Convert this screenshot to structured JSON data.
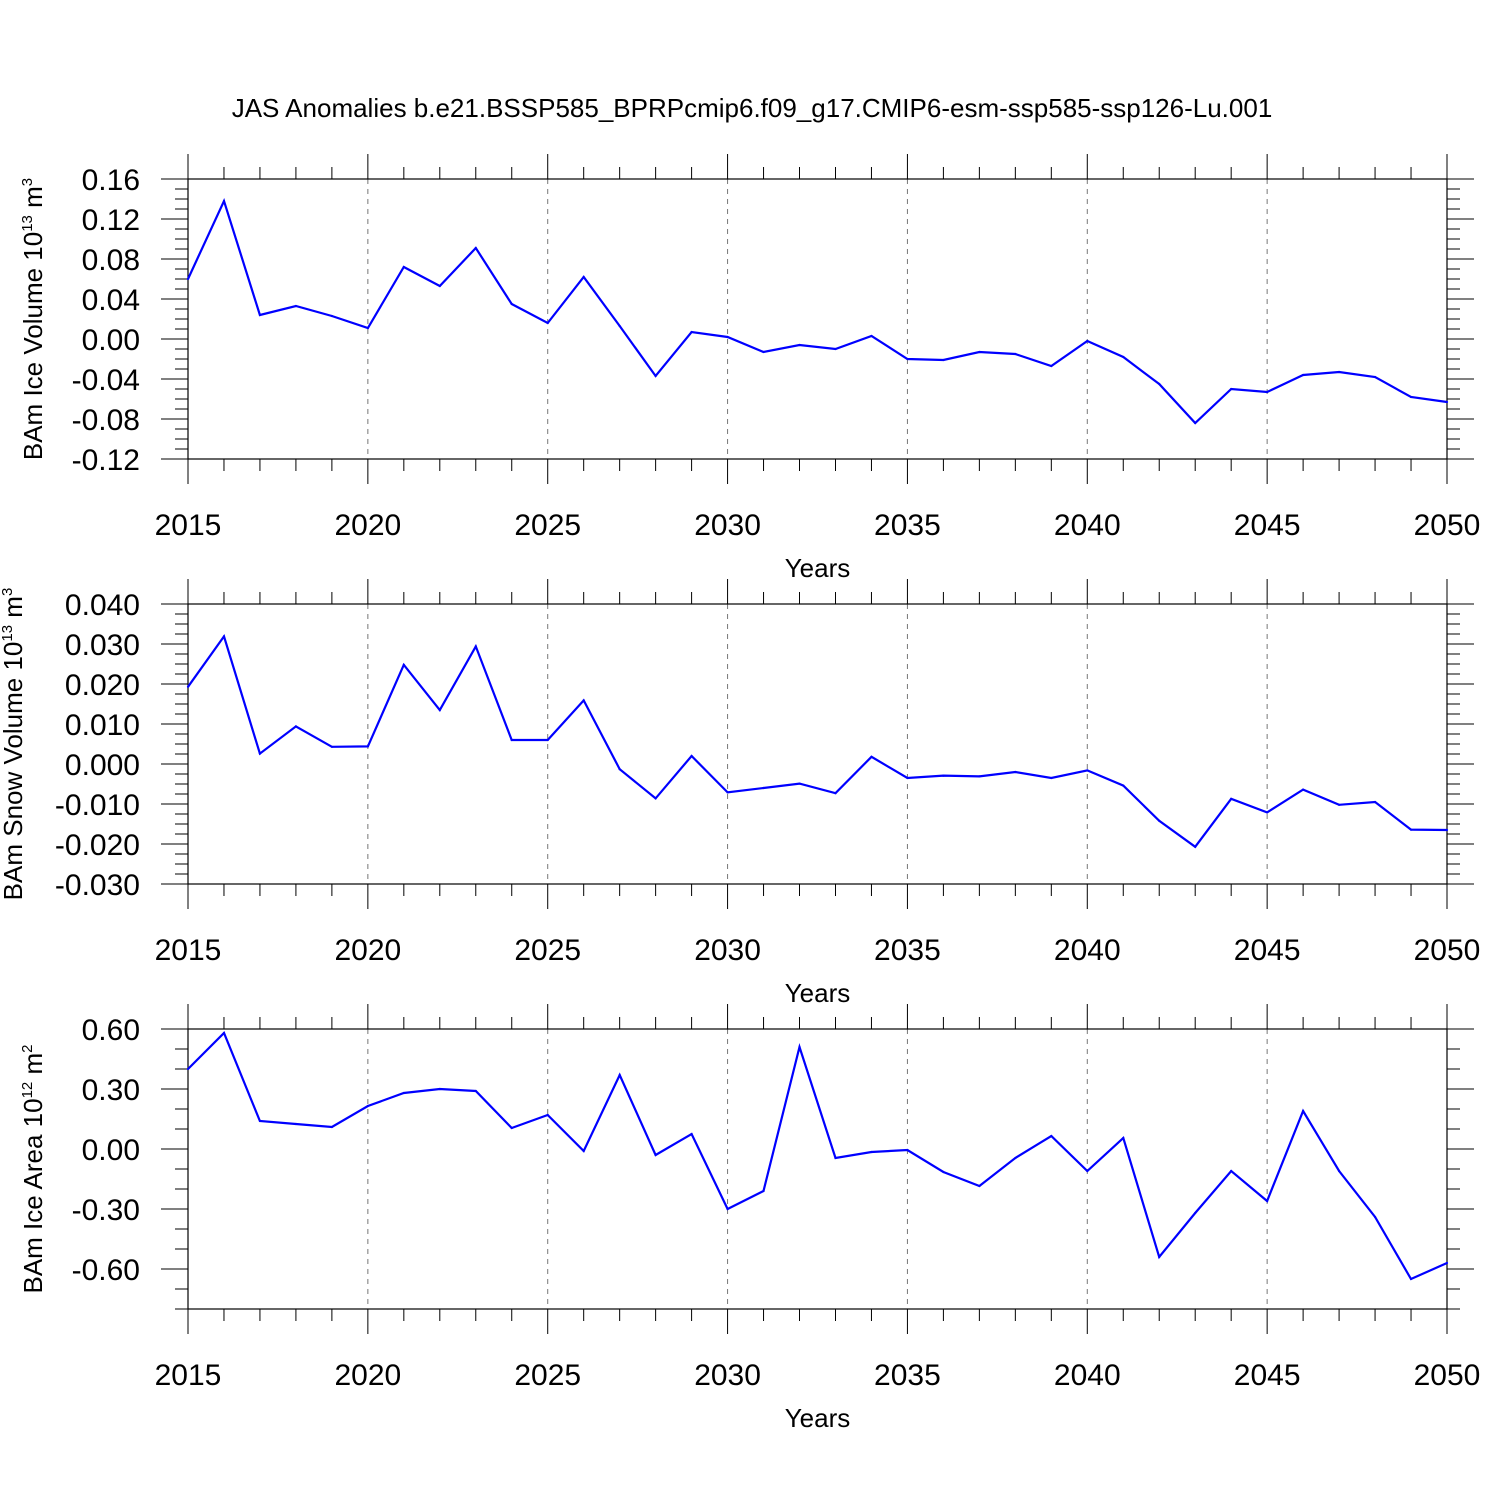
{
  "title": "JAS Anomalies b.e21.BSSP585_BPRPcmip6.f09_g17.CMIP6-esm-ssp585-ssp126-Lu.001",
  "colors": {
    "line": "#0000ff",
    "grid": "#777777"
  },
  "chart_data": [
    {
      "type": "line",
      "xlabel": "Years",
      "ylabel": {
        "main": "BAm Ice Volume 10",
        "sup": "13",
        "unit": " m",
        "unit_sup": "3"
      },
      "xlim": [
        2015,
        2050
      ],
      "ylim": [
        -0.12,
        0.16
      ],
      "x_ticks": [
        2015,
        2020,
        2025,
        2030,
        2035,
        2040,
        2045,
        2050
      ],
      "y_ticks": [
        -0.12,
        -0.08,
        -0.04,
        0.0,
        0.04,
        0.08,
        0.12,
        0.16
      ],
      "y_tick_labels": [
        "-0.12",
        "-0.08",
        "-0.04",
        "0.00",
        "0.04",
        "0.08",
        "0.12",
        "0.16"
      ],
      "y_minor_step": 0.01,
      "grid": "vertical dashed at major x ticks",
      "series": [
        {
          "x": [
            2015,
            2016,
            2017,
            2018,
            2019,
            2020,
            2021,
            2022,
            2023,
            2024,
            2025,
            2026,
            2027,
            2028,
            2029,
            2030,
            2031,
            2032,
            2033,
            2034,
            2035,
            2036,
            2037,
            2038,
            2039,
            2040,
            2041,
            2042,
            2043,
            2044,
            2045,
            2046,
            2047,
            2048,
            2049,
            2050
          ],
          "values": [
            0.06,
            0.138,
            0.024,
            0.033,
            0.023,
            0.011,
            0.072,
            0.053,
            0.091,
            0.035,
            0.016,
            0.062,
            0.013,
            -0.037,
            0.007,
            0.002,
            -0.013,
            -0.006,
            -0.01,
            0.003,
            -0.02,
            -0.021,
            -0.013,
            -0.015,
            -0.027,
            -0.002,
            -0.018,
            -0.045,
            -0.084,
            -0.05,
            -0.053,
            -0.036,
            -0.033,
            -0.038,
            -0.058,
            -0.063
          ]
        }
      ]
    },
    {
      "type": "line",
      "xlabel": "Years",
      "ylabel": {
        "main": "BAm Snow Volume 10",
        "sup": "13",
        "unit": " m",
        "unit_sup": "3"
      },
      "xlim": [
        2015,
        2050
      ],
      "ylim": [
        -0.03,
        0.04
      ],
      "x_ticks": [
        2015,
        2020,
        2025,
        2030,
        2035,
        2040,
        2045,
        2050
      ],
      "y_ticks": [
        -0.03,
        -0.02,
        -0.01,
        0.0,
        0.01,
        0.02,
        0.03,
        0.04
      ],
      "y_tick_labels": [
        "-0.030",
        "-0.020",
        "-0.010",
        "0.000",
        "0.010",
        "0.020",
        "0.030",
        "0.040"
      ],
      "y_minor_step": 0.0025,
      "grid": "vertical dashed at major x ticks",
      "series": [
        {
          "x": [
            2015,
            2016,
            2017,
            2018,
            2019,
            2020,
            2021,
            2022,
            2023,
            2024,
            2025,
            2026,
            2027,
            2028,
            2029,
            2030,
            2031,
            2032,
            2033,
            2034,
            2035,
            2036,
            2037,
            2038,
            2039,
            2040,
            2041,
            2042,
            2043,
            2044,
            2045,
            2046,
            2047,
            2048,
            2049,
            2050
          ],
          "values": [
            0.0193,
            0.0319,
            0.0026,
            0.0094,
            0.0043,
            0.0044,
            0.0248,
            0.0135,
            0.0294,
            0.006,
            0.006,
            0.0159,
            -0.0013,
            -0.0086,
            0.002,
            -0.0071,
            -0.006,
            -0.0049,
            -0.0073,
            0.0018,
            -0.0035,
            -0.0029,
            -0.0031,
            -0.002,
            -0.0035,
            -0.0016,
            -0.0054,
            -0.0142,
            -0.0207,
            -0.0087,
            -0.0121,
            -0.0064,
            -0.0102,
            -0.0095,
            -0.0164,
            -0.0165
          ]
        }
      ]
    },
    {
      "type": "line",
      "xlabel": "Years",
      "ylabel": {
        "main": "BAm Ice Area 10",
        "sup": "12",
        "unit": " m",
        "unit_sup": "2"
      },
      "xlim": [
        2015,
        2050
      ],
      "ylim": [
        -0.8,
        0.6
      ],
      "x_ticks": [
        2015,
        2020,
        2025,
        2030,
        2035,
        2040,
        2045,
        2050
      ],
      "y_ticks": [
        -0.6,
        -0.3,
        0.0,
        0.3,
        0.6
      ],
      "y_tick_labels": [
        "-0.60",
        "-0.30",
        "0.00",
        "0.30",
        "0.60"
      ],
      "y_minor_step": 0.1,
      "grid": "vertical dashed at major x ticks",
      "series": [
        {
          "x": [
            2015,
            2016,
            2017,
            2018,
            2019,
            2020,
            2021,
            2022,
            2023,
            2024,
            2025,
            2026,
            2027,
            2028,
            2029,
            2030,
            2031,
            2032,
            2033,
            2034,
            2035,
            2036,
            2037,
            2038,
            2039,
            2040,
            2041,
            2042,
            2043,
            2044,
            2045,
            2046,
            2047,
            2048,
            2049,
            2050
          ],
          "values": [
            0.4,
            0.58,
            0.14,
            0.125,
            0.11,
            0.215,
            0.28,
            0.3,
            0.29,
            0.105,
            0.17,
            -0.01,
            0.37,
            -0.03,
            0.075,
            -0.3,
            -0.21,
            0.51,
            -0.045,
            -0.015,
            -0.005,
            -0.115,
            -0.185,
            -0.045,
            0.065,
            -0.11,
            0.055,
            -0.54,
            -0.32,
            -0.11,
            -0.26,
            0.19,
            -0.11,
            -0.34,
            -0.65,
            -0.57
          ]
        }
      ]
    }
  ]
}
